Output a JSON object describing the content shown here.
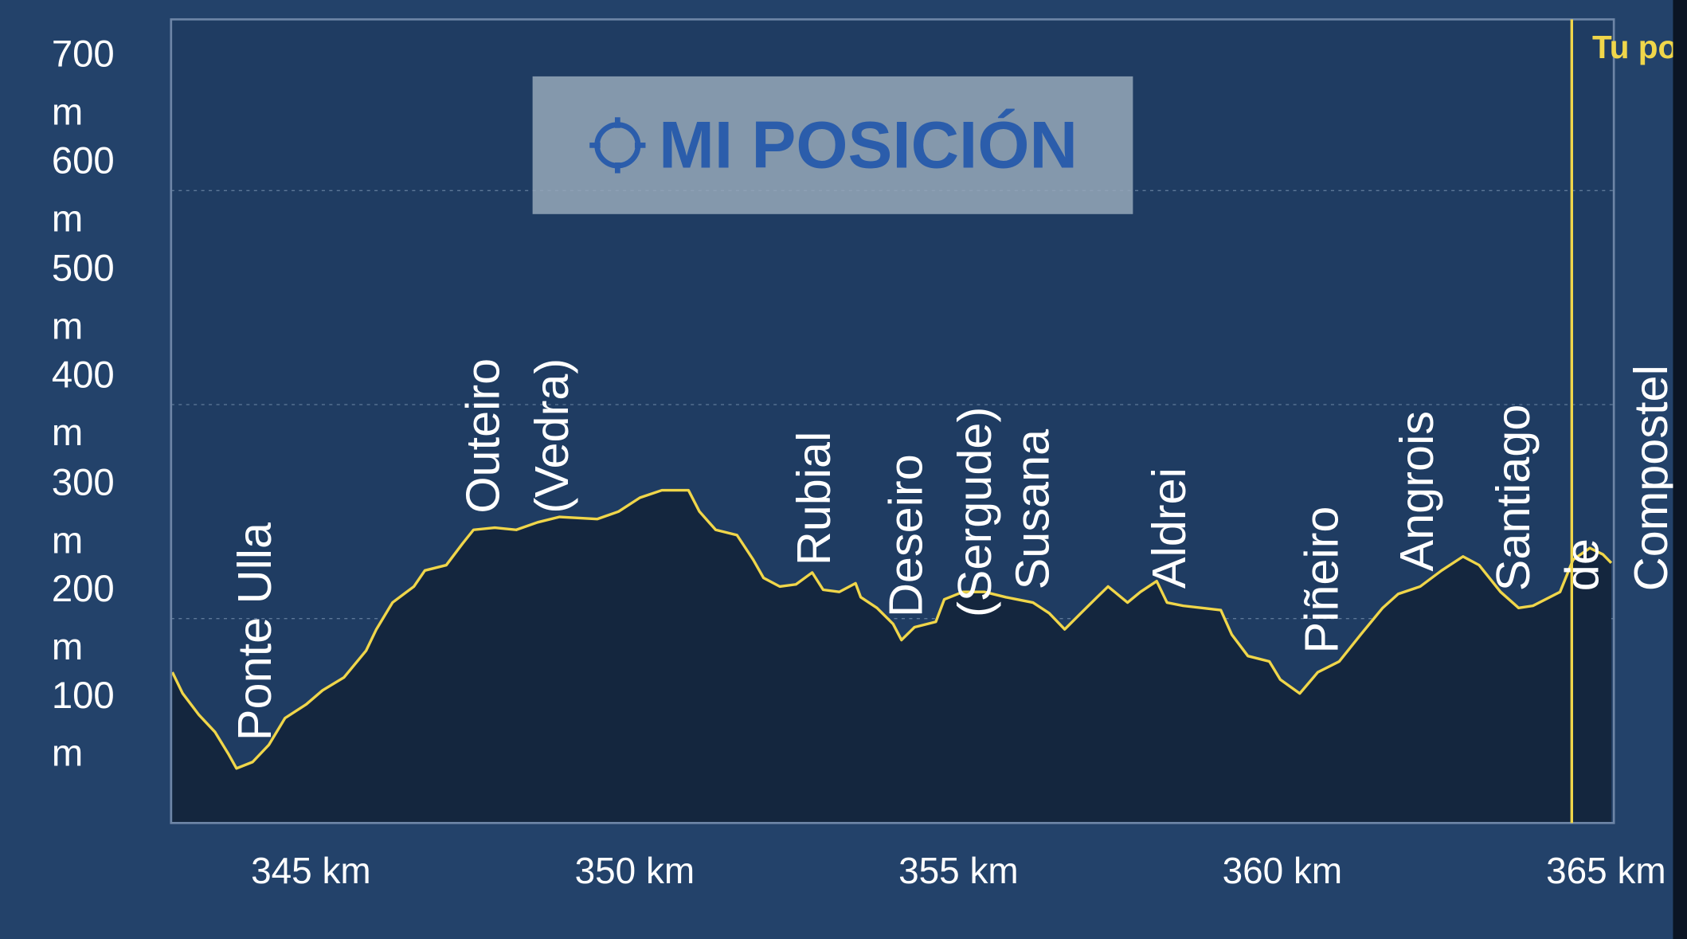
{
  "chart_data": {
    "type": "area",
    "x": [
      342.86,
      343.02,
      343.27,
      343.52,
      343.72,
      343.85,
      344.1,
      344.35,
      344.6,
      344.93,
      345.18,
      345.51,
      345.85,
      346.01,
      346.26,
      346.59,
      346.76,
      347.09,
      347.34,
      347.51,
      347.84,
      348.17,
      348.5,
      348.84,
      349.42,
      349.75,
      350.08,
      350.42,
      350.83,
      351.0,
      351.25,
      351.58,
      351.83,
      351.99,
      352.24,
      352.49,
      352.74,
      352.91,
      353.16,
      353.41,
      353.49,
      353.74,
      353.99,
      354.12,
      354.32,
      354.65,
      354.78,
      355.07,
      355.4,
      355.73,
      356.15,
      356.4,
      356.64,
      356.89,
      357.14,
      357.31,
      357.61,
      357.81,
      358.06,
      358.22,
      358.47,
      359.05,
      359.22,
      359.47,
      359.8,
      359.97,
      360.27,
      360.55,
      360.88,
      361.21,
      361.55,
      361.79,
      362.13,
      362.46,
      362.79,
      363.04,
      363.37,
      363.65,
      363.87,
      364.29,
      364.49,
      364.75,
      364.95,
      365.08
    ],
    "values": [
      150,
      130,
      110,
      94,
      74,
      60,
      66,
      82,
      107,
      120,
      133,
      145,
      170,
      190,
      215,
      230,
      245,
      250,
      270,
      283,
      285,
      283,
      290,
      295,
      293,
      300,
      313,
      320,
      320,
      300,
      283,
      278,
      255,
      238,
      230,
      232,
      243,
      227,
      225,
      233,
      220,
      210,
      195,
      180,
      192,
      197,
      218,
      225,
      225,
      220,
      215,
      205,
      190,
      205,
      220,
      230,
      215,
      225,
      235,
      215,
      212,
      208,
      185,
      165,
      160,
      143,
      130,
      150,
      160,
      185,
      210,
      223,
      230,
      245,
      258,
      250,
      225,
      210,
      212,
      225,
      255,
      266,
      260,
      252
    ],
    "color": "#f0d64a",
    "fill": "#14263e",
    "xlim": [
      342.84,
      365.12
    ],
    "ylim": [
      9,
      760
    ],
    "xticks": [
      {
        "value": 345,
        "label": "345 km"
      },
      {
        "value": 350,
        "label": "350 km"
      },
      {
        "value": 355,
        "label": "355 km"
      },
      {
        "value": 360,
        "label": "360 km"
      },
      {
        "value": 365,
        "label": "365 km"
      }
    ],
    "yticks": [
      {
        "value": 100,
        "label": "100 m"
      },
      {
        "value": 200,
        "label": "200 m"
      },
      {
        "value": 300,
        "label": "300 m"
      },
      {
        "value": 400,
        "label": "400 m"
      },
      {
        "value": 500,
        "label": "500 m"
      },
      {
        "value": 600,
        "label": "600 m"
      },
      {
        "value": 700,
        "label": "700 m"
      }
    ],
    "grid": true,
    "places": [
      {
        "lines": [
          "Ponte Ulla"
        ],
        "x": 344.19
      },
      {
        "lines": [
          "Outeiro",
          "(Vedra)"
        ],
        "x": 347.71
      },
      {
        "lines": [
          "Rubial"
        ],
        "x": 352.82
      },
      {
        "lines": [
          "Deseiro",
          "(Sergude)"
        ],
        "x": 354.24
      },
      {
        "lines": [
          "Susana"
        ],
        "x": 356.2
      },
      {
        "lines": [
          "Aldrei"
        ],
        "x": 358.31
      },
      {
        "lines": [
          "Piñeiro"
        ],
        "x": 360.66
      },
      {
        "lines": [
          "Angrois"
        ],
        "x": 362.13
      },
      {
        "lines": [
          "Santiago",
          "de",
          "Compostel"
        ],
        "x": 363.62
      }
    ],
    "marker": {
      "x": 364.47,
      "label": "Tu po"
    }
  },
  "button": {
    "label": "MI POSICIÓN"
  }
}
